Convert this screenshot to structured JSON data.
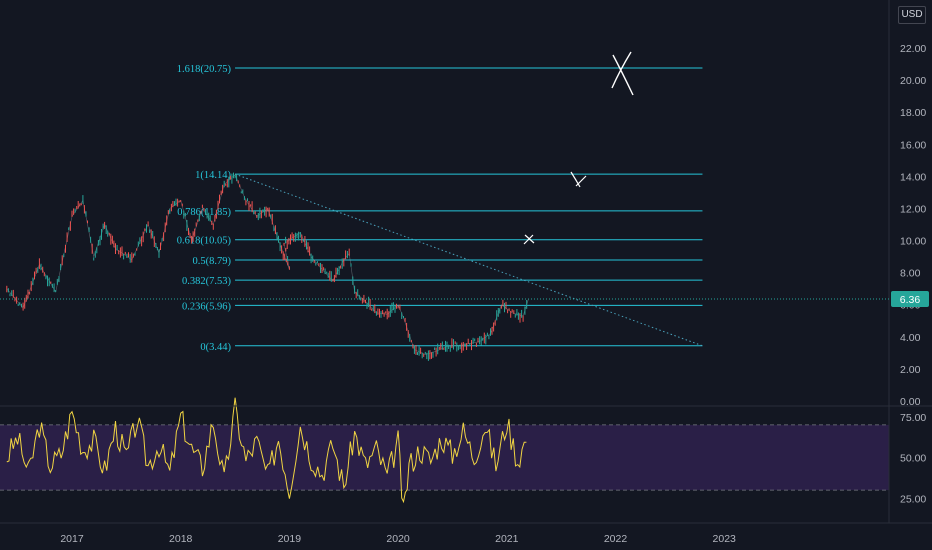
{
  "currency": "USD",
  "last_price": "6.36",
  "colors": {
    "background": "#131722",
    "fib": "#26c6da",
    "candle_up": "#26a69a",
    "candle_down": "#ef5350",
    "rsi_line": "#f0d443",
    "rsi_band": "#2a1f47",
    "price_tag": "#26a69a",
    "trend_line": "#4aa3bd"
  },
  "price_axis": {
    "ticks": [
      "0.00",
      "2.00",
      "4.00",
      "6.00",
      "8.00",
      "10.00",
      "12.00",
      "14.00",
      "16.00",
      "18.00",
      "20.00",
      "22.00"
    ],
    "ylim": [
      0,
      22
    ]
  },
  "rsi_axis": {
    "ticks": [
      "25.00",
      "50.00",
      "75.00"
    ],
    "ylim": [
      0,
      100
    ],
    "bands": [
      30,
      70
    ]
  },
  "time_axis": {
    "labels": [
      "2017",
      "2018",
      "2019",
      "2020",
      "2021",
      "2022",
      "2023"
    ]
  },
  "chart_data": {
    "type": "line",
    "fib_levels": [
      {
        "label": "1.618(20.75)",
        "value": 20.75
      },
      {
        "label": "1(14.14)",
        "value": 14.14
      },
      {
        "label": "0.786(11.85)",
        "value": 11.85
      },
      {
        "label": "0.618(10.05)",
        "value": 10.05
      },
      {
        "label": "0.5(8.79)",
        "value": 8.79
      },
      {
        "label": "0.382(7.53)",
        "value": 7.53
      },
      {
        "label": "0.236(5.96)",
        "value": 5.96
      },
      {
        "label": "0(3.44)",
        "value": 3.44
      }
    ],
    "fib_range": {
      "start": 2018.5,
      "end": 2022.8
    },
    "trend_line": {
      "start": {
        "x": 2018.5,
        "y": 14.14
      },
      "end": {
        "x": 2022.8,
        "y": 3.44
      }
    },
    "price_series": {
      "x": [
        2016.4,
        2016.55,
        2016.7,
        2016.85,
        2017.0,
        2017.1,
        2017.2,
        2017.3,
        2017.4,
        2017.55,
        2017.7,
        2017.8,
        2017.9,
        2018.0,
        2018.1,
        2018.2,
        2018.3,
        2018.4,
        2018.5,
        2018.6,
        2018.7,
        2018.8,
        2018.9,
        2019.0,
        2018.95,
        2019.1,
        2019.2,
        2019.3,
        2019.4,
        2019.5,
        2019.55,
        2019.6,
        2019.7,
        2019.8,
        2019.9,
        2020.0,
        2020.05,
        2020.15,
        2020.25,
        2020.35,
        2020.45,
        2020.6,
        2020.75,
        2020.85,
        2020.95,
        2021.05,
        2021.15,
        2021.2
      ],
      "y": [
        7.0,
        5.8,
        8.5,
        6.8,
        11.5,
        12.5,
        9.0,
        11.0,
        9.5,
        8.8,
        11.0,
        9.2,
        12.0,
        12.5,
        10.0,
        12.0,
        11.0,
        13.5,
        14.1,
        12.5,
        11.5,
        12.0,
        10.0,
        8.2,
        9.8,
        10.5,
        9.0,
        8.2,
        7.5,
        8.8,
        9.2,
        6.8,
        6.2,
        5.5,
        5.4,
        6.0,
        5.2,
        3.2,
        2.9,
        3.1,
        3.4,
        3.5,
        3.7,
        4.2,
        6.0,
        5.5,
        5.3,
        6.36
      ]
    },
    "rsi_series": {
      "x": [
        2016.4,
        2016.5,
        2016.6,
        2016.7,
        2016.8,
        2016.9,
        2017.0,
        2017.1,
        2017.2,
        2017.3,
        2017.4,
        2017.5,
        2017.6,
        2017.7,
        2017.8,
        2017.9,
        2018.0,
        2018.1,
        2018.2,
        2018.3,
        2018.4,
        2018.5,
        2018.6,
        2018.7,
        2018.8,
        2018.9,
        2019.0,
        2019.1,
        2019.2,
        2019.3,
        2019.4,
        2019.5,
        2019.6,
        2019.7,
        2019.8,
        2019.9,
        2020.0,
        2020.05,
        2020.1,
        2020.2,
        2020.3,
        2020.4,
        2020.5,
        2020.6,
        2020.7,
        2020.8,
        2020.9,
        2021.0,
        2021.1,
        2021.2
      ],
      "y": [
        50,
        62,
        40,
        70,
        45,
        52,
        78,
        55,
        60,
        42,
        68,
        50,
        73,
        45,
        58,
        40,
        75,
        55,
        44,
        72,
        35,
        80,
        48,
        60,
        38,
        62,
        30,
        70,
        50,
        40,
        58,
        32,
        65,
        45,
        55,
        38,
        60,
        15,
        45,
        55,
        48,
        62,
        52,
        66,
        50,
        70,
        45,
        72,
        48,
        65
      ]
    }
  }
}
